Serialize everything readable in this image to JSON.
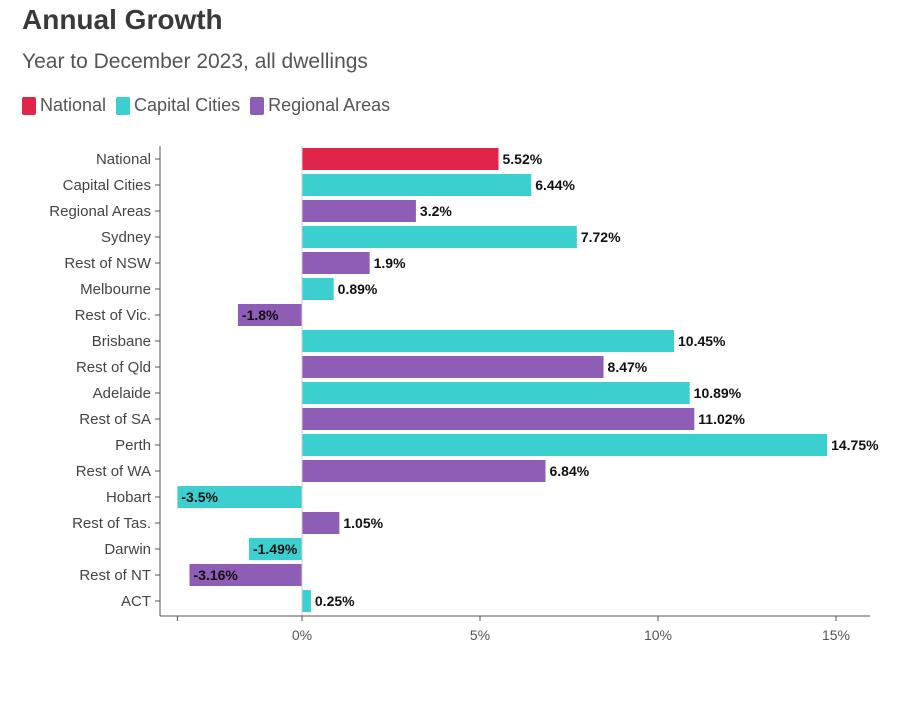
{
  "header": {
    "title": "Annual Growth",
    "subtitle": "Year to December 2023, all dwellings"
  },
  "colors": {
    "National": "#e0244a",
    "Capital Cities": "#3ccfcf",
    "Regional Areas": "#8e5db5"
  },
  "chart_data": {
    "type": "bar",
    "orientation": "horizontal",
    "title": "Annual Growth",
    "subtitle": "Year to December 2023, all dwellings",
    "legend": {
      "placement": "top-left",
      "entries": [
        "National",
        "Capital Cities",
        "Regional Areas"
      ]
    },
    "xlim": [
      -3.5,
      15.9
    ],
    "x_ticks": [
      0,
      5,
      10,
      15
    ],
    "x_tick_labels": [
      "0%",
      "5%",
      "10%",
      "15%"
    ],
    "grid": false,
    "categories": [
      "National",
      "Capital Cities",
      "Regional Areas",
      "Sydney",
      "Rest of NSW",
      "Melbourne",
      "Rest of Vic.",
      "Brisbane",
      "Rest of Qld",
      "Adelaide",
      "Rest of SA",
      "Perth",
      "Rest of WA",
      "Hobart",
      "Rest of Tas.",
      "Darwin",
      "Rest of NT",
      "ACT"
    ],
    "values": [
      5.52,
      6.44,
      3.2,
      7.72,
      1.9,
      0.89,
      -1.8,
      10.45,
      8.47,
      10.89,
      11.02,
      14.75,
      6.84,
      -3.5,
      1.05,
      -1.49,
      -3.16,
      0.25
    ],
    "value_labels": [
      "5.52%",
      "6.44%",
      "3.2%",
      "7.72%",
      "1.9%",
      "0.89%",
      "-1.8%",
      "10.45%",
      "8.47%",
      "10.89%",
      "11.02%",
      "14.75%",
      "6.84%",
      "-3.5%",
      "1.05%",
      "-1.49%",
      "-3.16%",
      "0.25%"
    ],
    "groups": [
      "National",
      "Capital Cities",
      "Regional Areas",
      "Capital Cities",
      "Regional Areas",
      "Capital Cities",
      "Regional Areas",
      "Capital Cities",
      "Regional Areas",
      "Capital Cities",
      "Regional Areas",
      "Capital Cities",
      "Regional Areas",
      "Capital Cities",
      "Regional Areas",
      "Capital Cities",
      "Regional Areas",
      "Capital Cities"
    ]
  }
}
